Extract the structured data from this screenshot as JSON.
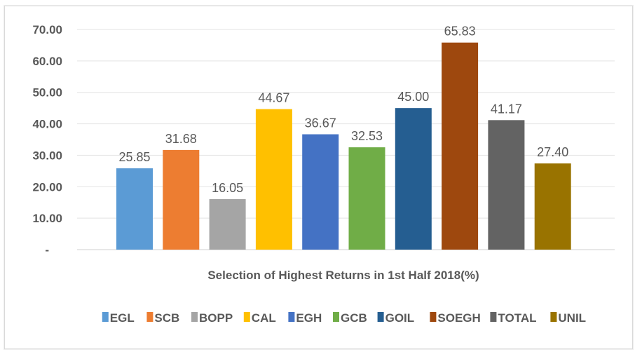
{
  "chart_data": {
    "type": "bar",
    "title": "",
    "xlabel": "",
    "ylabel": "",
    "categories": [
      "Selection of Highest Returns in 1st Half 2018(%)"
    ],
    "series": [
      {
        "name": "EGL",
        "values": [
          25.85
        ],
        "label": "25.85",
        "color": "#5b9bd5"
      },
      {
        "name": "SCB",
        "values": [
          31.68
        ],
        "label": "31.68",
        "color": "#ed7d31"
      },
      {
        "name": "BOPP",
        "values": [
          16.05
        ],
        "label": "16.05",
        "color": "#a5a5a5"
      },
      {
        "name": "CAL",
        "values": [
          44.67
        ],
        "label": "44.67",
        "color": "#ffc000"
      },
      {
        "name": "EGH",
        "values": [
          36.67
        ],
        "label": "36.67",
        "color": "#4472c4"
      },
      {
        "name": "GCB",
        "values": [
          32.53
        ],
        "label": "32.53",
        "color": "#70ad47"
      },
      {
        "name": "GOIL",
        "values": [
          45.0
        ],
        "label": "45.00",
        "color": "#255e91"
      },
      {
        "name": "SOEGH",
        "values": [
          65.83
        ],
        "label": "65.83",
        "color": "#9e480e"
      },
      {
        "name": "TOTAL",
        "values": [
          41.17
        ],
        "label": "41.17",
        "color": "#636363"
      },
      {
        "name": "UNIL",
        "values": [
          27.4
        ],
        "label": "27.40",
        "color": "#997300"
      }
    ],
    "ylim": [
      0,
      70
    ],
    "yticks": [
      0,
      10,
      20,
      30,
      40,
      50,
      60,
      70
    ],
    "ytick_labels": [
      "-",
      "10.00",
      "20.00",
      "30.00",
      "40.00",
      "50.00",
      "60.00",
      "70.00"
    ],
    "grid": true,
    "legend": "bottom"
  }
}
